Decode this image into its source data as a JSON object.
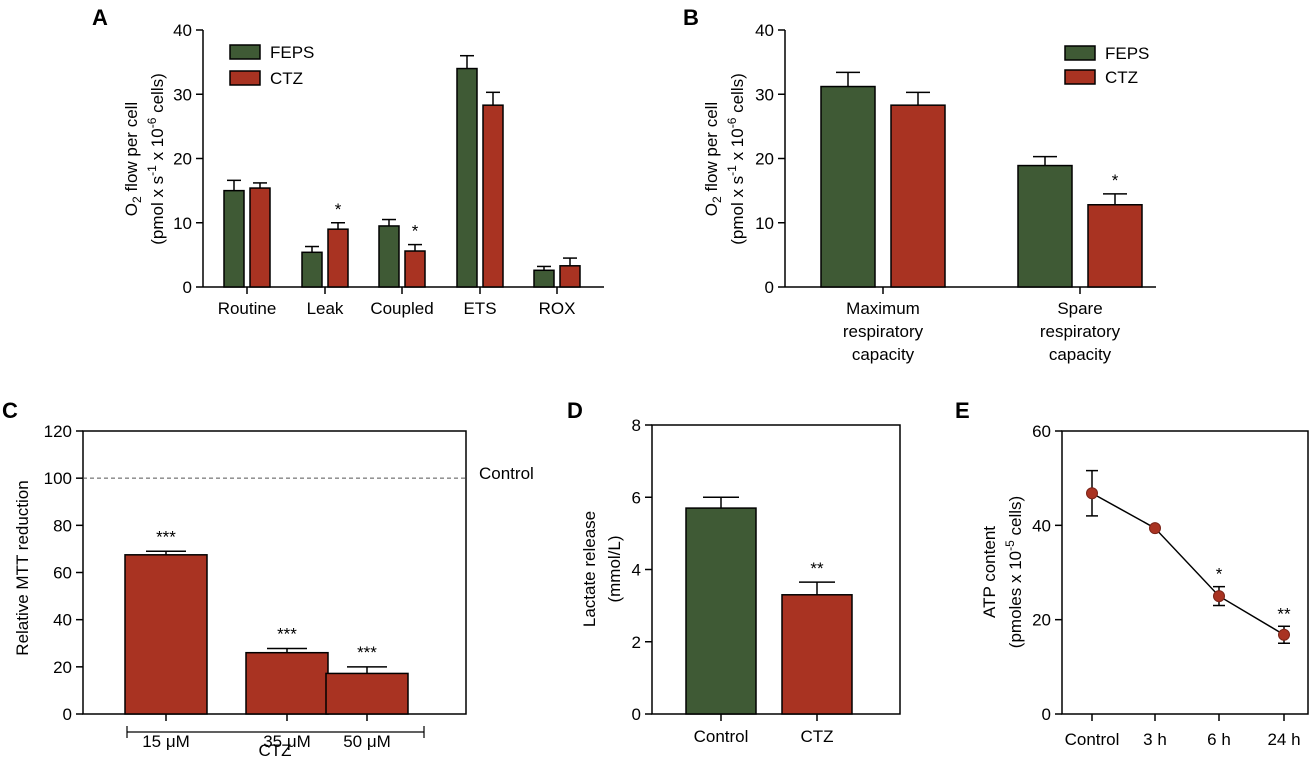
{
  "colors": {
    "feps": "#3f5a35",
    "ctz": "#a93322",
    "ink": "#000000"
  },
  "charts": {
    "A": {
      "panel_label": "A",
      "ylabel_line1": "O2 flow per cell",
      "ylabel_line2": "(pmol x s-1 x 10-6 cells)",
      "ylim": [
        0,
        40
      ],
      "yticks": [
        0,
        10,
        20,
        30,
        40
      ],
      "legend": [
        "FEPS",
        "CTZ"
      ]
    },
    "B": {
      "panel_label": "B",
      "ylabel_line1": "O2 flow per cell",
      "ylabel_line2": "(pmol x s-1 x 10-6 cells)",
      "ylim": [
        0,
        40
      ],
      "yticks": [
        0,
        10,
        20,
        30,
        40
      ],
      "legend": [
        "FEPS",
        "CTZ"
      ]
    },
    "C": {
      "panel_label": "C",
      "ylabel": "Relative MTT reduction",
      "ylim": [
        0,
        120
      ],
      "yticks": [
        0,
        20,
        40,
        60,
        80,
        100,
        120
      ],
      "reference_label": "Control",
      "group_label": "CTZ"
    },
    "D": {
      "panel_label": "D",
      "ylabel_line1": "Lactate release",
      "ylabel_line2": "(mmol/L)",
      "ylim": [
        0,
        8
      ],
      "yticks": [
        0,
        2,
        4,
        6,
        8
      ]
    },
    "E": {
      "panel_label": "E",
      "ylabel_line1": "ATP content",
      "ylabel_line2": "(pmoles x 10-5 cells)",
      "ylim": [
        0,
        60
      ],
      "yticks": [
        0,
        20,
        40,
        60
      ]
    }
  },
  "chart_data": [
    {
      "panel": "A",
      "type": "bar",
      "categories": [
        "Routine",
        "Leak",
        "Coupled",
        "ETS",
        "ROX"
      ],
      "series": [
        {
          "name": "FEPS",
          "values": [
            15.0,
            5.4,
            9.5,
            34.0,
            2.6
          ],
          "errors": [
            1.6,
            0.9,
            1.0,
            2.0,
            0.6
          ],
          "sig": [
            "",
            "",
            "",
            "",
            ""
          ]
        },
        {
          "name": "CTZ",
          "values": [
            15.4,
            9.0,
            5.6,
            28.3,
            3.3
          ],
          "errors": [
            0.8,
            1.0,
            1.0,
            2.0,
            1.2
          ],
          "sig": [
            "",
            "*",
            "*",
            "",
            ""
          ]
        }
      ],
      "ylim": [
        0,
        40
      ]
    },
    {
      "panel": "B",
      "type": "bar",
      "categories": [
        "Maximum respiratory capacity",
        "Spare respiratory capacity"
      ],
      "category_lines": [
        [
          "Maximum",
          "respiratory",
          "capacity"
        ],
        [
          "Spare",
          "respiratory",
          "capacity"
        ]
      ],
      "series": [
        {
          "name": "FEPS",
          "values": [
            31.2,
            18.9
          ],
          "errors": [
            2.2,
            1.4
          ],
          "sig": [
            "",
            ""
          ]
        },
        {
          "name": "CTZ",
          "values": [
            28.3,
            12.8
          ],
          "errors": [
            2.0,
            1.7
          ],
          "sig": [
            "",
            "*"
          ]
        }
      ],
      "ylim": [
        0,
        40
      ]
    },
    {
      "panel": "C",
      "type": "bar",
      "categories": [
        "15 μM",
        "35 μM",
        "50 μM"
      ],
      "values": [
        67.5,
        26.0,
        17.2
      ],
      "errors": [
        1.5,
        1.8,
        2.8
      ],
      "sig": [
        "***",
        "***",
        "***"
      ],
      "reference_line": 100,
      "ylim": [
        0,
        120
      ]
    },
    {
      "panel": "D",
      "type": "bar",
      "categories": [
        "Control",
        "CTZ"
      ],
      "values": [
        5.7,
        3.3
      ],
      "errors": [
        0.3,
        0.35
      ],
      "sig": [
        "",
        "**"
      ],
      "ylim": [
        0,
        8
      ]
    },
    {
      "panel": "E",
      "type": "line",
      "categories": [
        "Control",
        "3 h",
        "6 h",
        "24 h"
      ],
      "values": [
        46.8,
        39.4,
        25.0,
        16.8
      ],
      "errors": [
        4.8,
        0.5,
        2.0,
        1.8
      ],
      "sig": [
        "",
        "",
        "*",
        "**"
      ],
      "ylim": [
        0,
        60
      ]
    }
  ]
}
